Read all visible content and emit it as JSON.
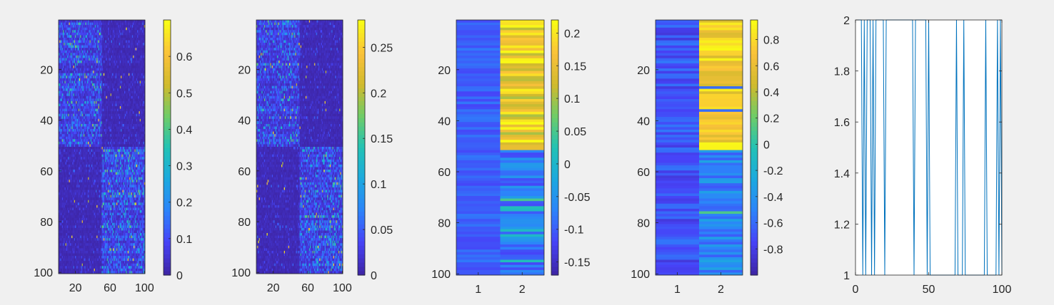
{
  "chart_data": [
    {
      "type": "heatmap",
      "title": "",
      "xlabel": "",
      "ylabel": "",
      "rows": 100,
      "cols": 100,
      "xticks": [
        20,
        60,
        100
      ],
      "yticks": [
        20,
        40,
        60,
        80,
        100
      ],
      "colorbar": {
        "min": 0,
        "max": 0.7,
        "ticks": [
          0,
          0.1,
          0.2,
          0.3,
          0.4,
          0.5,
          0.6
        ]
      },
      "pattern": "sparse random affinity matrix; rows 1-50 concentrated in columns 1-50, rows 51-100 concentrated in columns 51-100; max value about 0.7"
    },
    {
      "type": "heatmap",
      "title": "",
      "xlabel": "",
      "ylabel": "",
      "rows": 100,
      "cols": 100,
      "xticks": [
        20,
        60,
        100
      ],
      "yticks": [
        20,
        40,
        60,
        80,
        100
      ],
      "colorbar": {
        "min": 0,
        "max": 0.28,
        "ticks": [
          0,
          0.05,
          0.1,
          0.15,
          0.2,
          0.25
        ]
      },
      "pattern": "normalized version of the first matrix with the same two-block structure; max value about 0.28"
    },
    {
      "type": "heatmap",
      "title": "",
      "xlabel": "",
      "ylabel": "",
      "rows": 100,
      "cols": 2,
      "xticks": [
        1,
        2
      ],
      "yticks": [
        20,
        40,
        60,
        80,
        100
      ],
      "colorbar": {
        "min": -0.17,
        "max": 0.22,
        "ticks": [
          -0.15,
          -0.1,
          -0.05,
          0,
          0.05,
          0.1,
          0.15,
          0.2
        ]
      },
      "column1": {
        "mean": -0.1,
        "spread": 0.02
      },
      "column2": {
        "rows_1_50": "positive, mostly 0.1 to 0.22",
        "rows_51_100": "negative, mostly -0.12 to -0.05"
      }
    },
    {
      "type": "heatmap",
      "title": "",
      "xlabel": "",
      "ylabel": "",
      "rows": 100,
      "cols": 2,
      "xticks": [
        1,
        2
      ],
      "yticks": [
        20,
        40,
        60,
        80,
        100
      ],
      "colorbar": {
        "min": -1,
        "max": 0.95,
        "ticks": [
          -0.8,
          -0.6,
          -0.4,
          -0.2,
          0,
          0.2,
          0.4,
          0.6,
          0.8
        ]
      },
      "column1": {
        "mean": -0.7,
        "spread": 0.15
      },
      "column2": {
        "rows_1_50": "positive, mostly 0.5 to 0.95",
        "rows_51_100": "negative, mostly -0.7 to -0.3"
      }
    },
    {
      "type": "line",
      "title": "",
      "xlabel": "",
      "ylabel": "",
      "xlim": [
        0,
        100
      ],
      "ylim": [
        1,
        2
      ],
      "xticks": [
        0,
        50,
        100
      ],
      "yticks": [
        1,
        1.2,
        1.4,
        1.6,
        1.8,
        2
      ],
      "color": "#0072BD",
      "x": [
        1,
        2,
        3,
        4,
        5,
        6,
        7,
        8,
        9,
        10,
        11,
        12,
        13,
        14,
        15,
        16,
        17,
        18,
        19,
        20,
        21,
        22,
        23,
        24,
        25,
        26,
        27,
        28,
        29,
        30,
        31,
        32,
        33,
        34,
        35,
        36,
        37,
        38,
        39,
        40,
        41,
        42,
        43,
        44,
        45,
        46,
        47,
        48,
        49,
        50,
        51,
        52,
        53,
        54,
        55,
        56,
        57,
        58,
        59,
        60,
        61,
        62,
        63,
        64,
        65,
        66,
        67,
        68,
        69,
        70,
        71,
        72,
        73,
        74,
        75,
        76,
        77,
        78,
        79,
        80,
        81,
        82,
        83,
        84,
        85,
        86,
        87,
        88,
        89,
        90,
        91,
        92,
        93,
        94,
        95,
        96,
        97,
        98,
        99,
        100
      ],
      "y": [
        2,
        2,
        2,
        2,
        1,
        2,
        1,
        2,
        2,
        2,
        1,
        2,
        1,
        2,
        2,
        2,
        2,
        2,
        2,
        1,
        2,
        2,
        2,
        2,
        2,
        2,
        2,
        2,
        2,
        2,
        2,
        2,
        2,
        2,
        2,
        2,
        2,
        2,
        2,
        1,
        2,
        2,
        2,
        2,
        2,
        2,
        2,
        2,
        1,
        2,
        1,
        1,
        1,
        1,
        1,
        1,
        1,
        1,
        1,
        1,
        1,
        1,
        1,
        1,
        1,
        1,
        1,
        1,
        2,
        1,
        1,
        1,
        1,
        2,
        1,
        1,
        1,
        1,
        1,
        1,
        1,
        1,
        1,
        1,
        1,
        1,
        1,
        1,
        2,
        1,
        1,
        1,
        1,
        1,
        1,
        1,
        2,
        1,
        2,
        1
      ]
    }
  ],
  "colormap": [
    "#3e26a8",
    "#4743f8",
    "#2c84fa",
    "#1ca9df",
    "#22c2b5",
    "#6ecc68",
    "#d0ba2d",
    "#fac13a",
    "#f9fb15"
  ],
  "colors": {
    "axes_bg": "#ffffff",
    "figure_bg": "#f0f0f0",
    "axis_line": "#262626",
    "line": "#0072BD"
  }
}
